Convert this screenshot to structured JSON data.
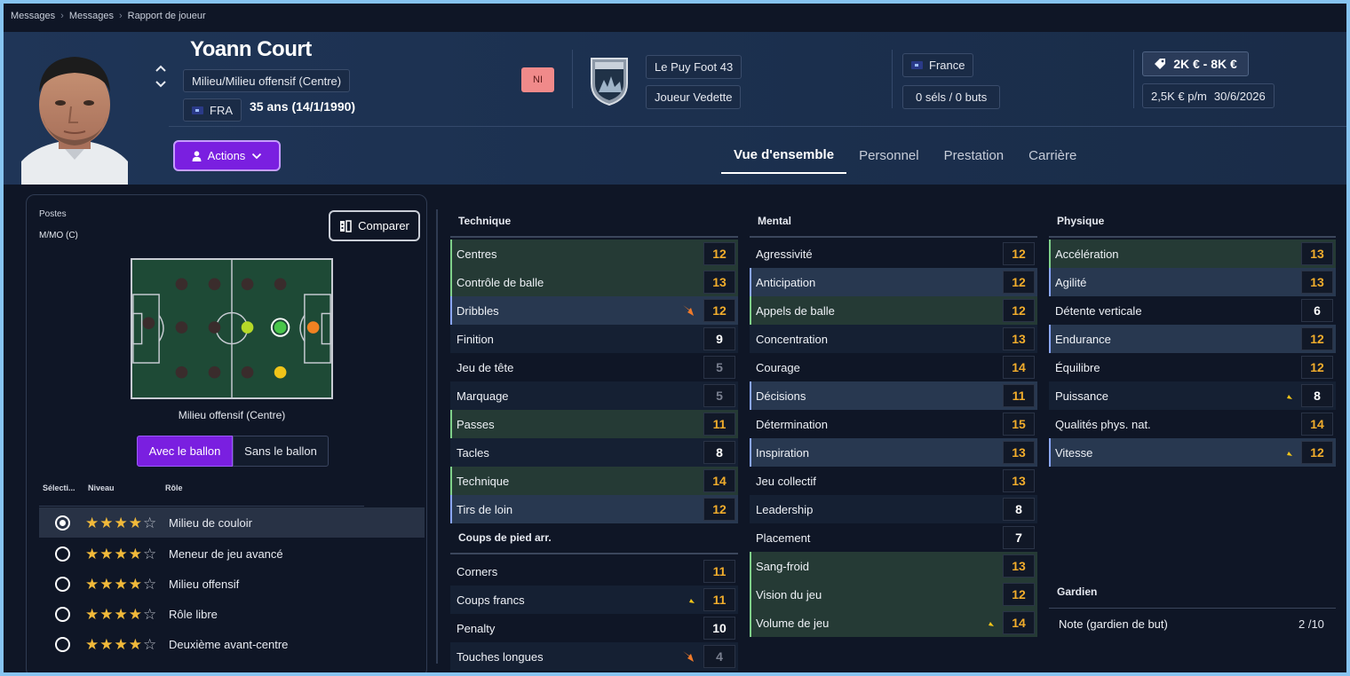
{
  "breadcrumb": [
    "Messages",
    "Messages",
    "Rapport de joueur"
  ],
  "player": {
    "name": "Yoann Court",
    "position": "Milieu/Milieu offensif (Centre)",
    "nationality": "FRA",
    "age": "35 ans (14/1/1990)",
    "ni_badge": "NI",
    "club": "Le Puy Foot 43",
    "club_role": "Joueur Vedette",
    "country": "France",
    "caps": "0 séls / 0 buts",
    "value": "2K € - 8K €",
    "wage": "2,5K € p/m",
    "contract_end": "30/6/2026"
  },
  "actions_label": "Actions",
  "tabs": [
    "Vue d'ensemble",
    "Personnel",
    "Prestation",
    "Carrière"
  ],
  "positions": {
    "label": "Postes",
    "value": "M/MO (C)",
    "compare_label": "Comparer",
    "pitch_caption": "Milieu offensif (Centre)",
    "toggle": [
      "Avec le ballon",
      "Sans le ballon"
    ]
  },
  "roles": {
    "headers": [
      "Sélecti...",
      "Niveau",
      "Rôle"
    ],
    "items": [
      {
        "name": "Milieu de couloir",
        "stars": 4,
        "selected": true
      },
      {
        "name": "Meneur de jeu avancé",
        "stars": 4,
        "selected": false
      },
      {
        "name": "Milieu offensif",
        "stars": 4,
        "selected": false
      },
      {
        "name": "Rôle libre",
        "stars": 4,
        "selected": false
      },
      {
        "name": "Deuxième avant-centre",
        "stars": 4,
        "selected": false
      }
    ]
  },
  "attributes": {
    "technique": {
      "title": "Technique",
      "items": [
        {
          "name": "Centres",
          "value": "12",
          "hl": "green"
        },
        {
          "name": "Contrôle de balle",
          "value": "13",
          "hl": "green"
        },
        {
          "name": "Dribbles",
          "value": "12",
          "hl": "blue",
          "icon": "down-orange"
        },
        {
          "name": "Finition",
          "value": "9",
          "hl": "none"
        },
        {
          "name": "Jeu de tête",
          "value": "5",
          "hl": "none"
        },
        {
          "name": "Marquage",
          "value": "5",
          "hl": "none"
        },
        {
          "name": "Passes",
          "value": "11",
          "hl": "green"
        },
        {
          "name": "Tacles",
          "value": "8",
          "hl": "none"
        },
        {
          "name": "Technique",
          "value": "14",
          "hl": "green"
        },
        {
          "name": "Tirs de loin",
          "value": "12",
          "hl": "blue"
        }
      ]
    },
    "set_pieces": {
      "title": "Coups de pied arr.",
      "items": [
        {
          "name": "Corners",
          "value": "11",
          "hl": "none"
        },
        {
          "name": "Coups francs",
          "value": "11",
          "hl": "none",
          "icon": "down-yellow"
        },
        {
          "name": "Penalty",
          "value": "10",
          "hl": "none"
        },
        {
          "name": "Touches longues",
          "value": "4",
          "hl": "none",
          "icon": "down-orange"
        }
      ]
    },
    "mental": {
      "title": "Mental",
      "items": [
        {
          "name": "Agressivité",
          "value": "12",
          "hl": "none"
        },
        {
          "name": "Anticipation",
          "value": "12",
          "hl": "blue"
        },
        {
          "name": "Appels de balle",
          "value": "12",
          "hl": "green"
        },
        {
          "name": "Concentration",
          "value": "13",
          "hl": "none"
        },
        {
          "name": "Courage",
          "value": "14",
          "hl": "none"
        },
        {
          "name": "Décisions",
          "value": "11",
          "hl": "blue"
        },
        {
          "name": "Détermination",
          "value": "15",
          "hl": "none"
        },
        {
          "name": "Inspiration",
          "value": "13",
          "hl": "blue"
        },
        {
          "name": "Jeu collectif",
          "value": "13",
          "hl": "none"
        },
        {
          "name": "Leadership",
          "value": "8",
          "hl": "none"
        },
        {
          "name": "Placement",
          "value": "7",
          "hl": "none"
        },
        {
          "name": "Sang-froid",
          "value": "13",
          "hl": "green"
        },
        {
          "name": "Vision du jeu",
          "value": "12",
          "hl": "green"
        },
        {
          "name": "Volume de jeu",
          "value": "14",
          "hl": "green",
          "icon": "down-yellow"
        }
      ]
    },
    "physical": {
      "title": "Physique",
      "items": [
        {
          "name": "Accélération",
          "value": "13",
          "hl": "green"
        },
        {
          "name": "Agilité",
          "value": "13",
          "hl": "blue"
        },
        {
          "name": "Détente verticale",
          "value": "6",
          "hl": "none"
        },
        {
          "name": "Endurance",
          "value": "12",
          "hl": "blue"
        },
        {
          "name": "Équilibre",
          "value": "12",
          "hl": "none"
        },
        {
          "name": "Puissance",
          "value": "8",
          "hl": "none",
          "icon": "down-yellow"
        },
        {
          "name": "Qualités phys. nat.",
          "value": "14",
          "hl": "none"
        },
        {
          "name": "Vitesse",
          "value": "12",
          "hl": "blue",
          "icon": "down-yellow"
        }
      ]
    },
    "goalkeeper": {
      "title": "Gardien",
      "name": "Note (gardien de but)",
      "value": "2 /10"
    }
  },
  "colors": {
    "accent": "#7a1fe0",
    "attr_orange": "#f2ad2c",
    "row_green": "#253a35",
    "row_blue": "#283850"
  }
}
